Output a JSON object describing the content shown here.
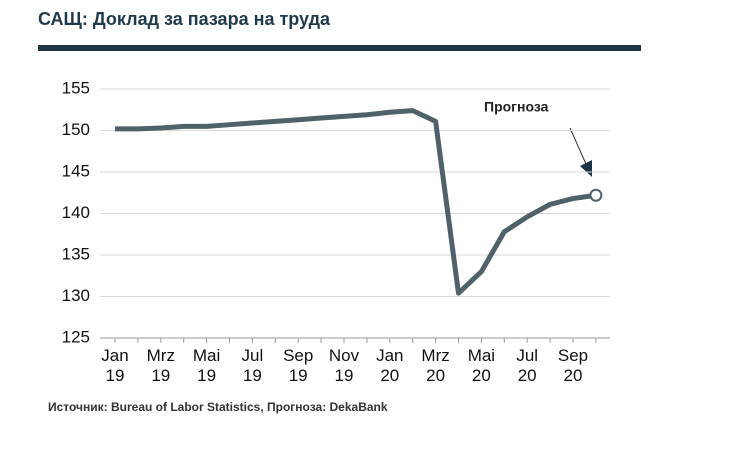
{
  "chart_data": {
    "type": "line",
    "title": "САЩ: Доклад за пазара на труда",
    "categories": [
      "Jan\n19",
      null,
      "Mrz\n19",
      null,
      "Mai\n19",
      null,
      "Jul\n19",
      null,
      "Sep\n19",
      null,
      "Nov\n19",
      null,
      "Jan\n20",
      null,
      "Mrz\n20",
      null,
      "Mai\n20",
      null,
      "Jul\n20",
      null,
      "Sep\n20",
      null
    ],
    "values": [
      150.2,
      150.2,
      150.3,
      150.5,
      150.5,
      150.7,
      150.9,
      151.1,
      151.3,
      151.5,
      151.7,
      151.9,
      152.2,
      152.4,
      151.1,
      130.4,
      133.0,
      137.8,
      139.6,
      141.1,
      141.8,
      142.2
    ],
    "color": "#4f6169",
    "ylim": [
      125,
      155
    ],
    "yticks": [
      125,
      130,
      135,
      140,
      145,
      150,
      155
    ],
    "grid": true,
    "annotation": "Прогноза",
    "source": "Источник: Bureau of Labor Statistics, Прогноза: DekaBank"
  }
}
